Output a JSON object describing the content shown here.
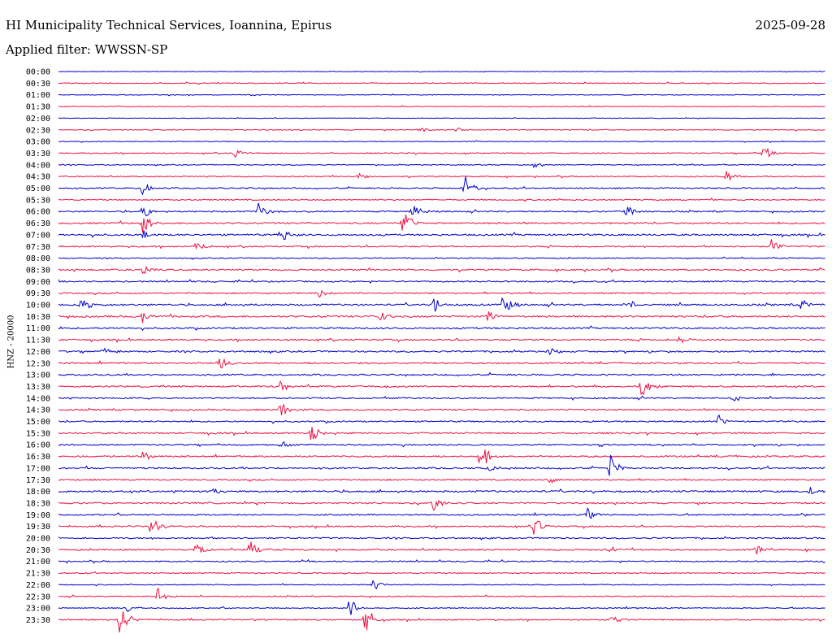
{
  "header": {
    "station": "HI Municipality Technical Services, Ioannina, Epirus",
    "date": "2025-09-28",
    "filter": "Applied filter: WWSSN-SP"
  },
  "channel_label": "HNZ - 20000",
  "colors": {
    "even_trace": "#0000cc",
    "odd_trace": "#ee1144",
    "text": "#000000"
  },
  "chart_data": {
    "type": "line",
    "title": "HI Municipality Technical Services, Ioannina, Epirus",
    "subtitle": "Applied filter: WWSSN-SP",
    "ylabel": "HNZ - 20000",
    "xlabel": "",
    "rows": [
      "00:00",
      "00:30",
      "01:00",
      "01:30",
      "02:00",
      "02:30",
      "03:00",
      "03:30",
      "04:00",
      "04:30",
      "05:00",
      "05:30",
      "06:00",
      "06:30",
      "07:00",
      "07:30",
      "08:00",
      "08:30",
      "09:00",
      "09:30",
      "10:00",
      "10:30",
      "11:00",
      "11:30",
      "12:00",
      "12:30",
      "13:00",
      "13:30",
      "14:00",
      "14:30",
      "15:00",
      "15:30",
      "16:00",
      "16:30",
      "17:00",
      "17:30",
      "18:00",
      "18:30",
      "19:00",
      "19:30",
      "20:00",
      "20:30",
      "21:00",
      "21:30",
      "22:00",
      "22:30",
      "23:00",
      "23:30"
    ],
    "noise_level": [
      0.3,
      0.5,
      0.4,
      0.4,
      0.3,
      0.5,
      0.4,
      0.6,
      0.5,
      0.6,
      0.7,
      0.7,
      0.8,
      0.9,
      1.0,
      0.8,
      0.6,
      0.9,
      0.8,
      0.8,
      1.0,
      1.0,
      0.9,
      0.9,
      0.9,
      0.9,
      0.9,
      0.9,
      0.8,
      0.9,
      0.8,
      0.9,
      0.8,
      0.9,
      0.9,
      0.8,
      1.0,
      0.9,
      0.8,
      0.8,
      0.8,
      0.9,
      0.7,
      0.6,
      0.5,
      0.6,
      0.6,
      0.7
    ],
    "events": [
      {
        "row": 5,
        "t": 0.47,
        "amp": 5
      },
      {
        "row": 5,
        "t": 0.52,
        "amp": 5
      },
      {
        "row": 7,
        "t": 0.23,
        "amp": 6
      },
      {
        "row": 7,
        "t": 0.92,
        "amp": 9
      },
      {
        "row": 8,
        "t": 0.62,
        "amp": 4
      },
      {
        "row": 9,
        "t": 0.39,
        "amp": 5
      },
      {
        "row": 9,
        "t": 0.87,
        "amp": 8
      },
      {
        "row": 10,
        "t": 0.11,
        "amp": 8
      },
      {
        "row": 10,
        "t": 0.53,
        "amp": 16
      },
      {
        "row": 12,
        "t": 0.11,
        "amp": 10
      },
      {
        "row": 12,
        "t": 0.26,
        "amp": 14
      },
      {
        "row": 12,
        "t": 0.46,
        "amp": 14
      },
      {
        "row": 12,
        "t": 0.74,
        "amp": 12
      },
      {
        "row": 13,
        "t": 0.11,
        "amp": 15
      },
      {
        "row": 13,
        "t": 0.45,
        "amp": 22
      },
      {
        "row": 14,
        "t": 0.29,
        "amp": 12
      },
      {
        "row": 14,
        "t": 0.11,
        "amp": 6
      },
      {
        "row": 15,
        "t": 0.18,
        "amp": 9
      },
      {
        "row": 15,
        "t": 0.93,
        "amp": 10
      },
      {
        "row": 17,
        "t": 0.11,
        "amp": 11
      },
      {
        "row": 19,
        "t": 0.34,
        "amp": 6
      },
      {
        "row": 20,
        "t": 0.03,
        "amp": 12
      },
      {
        "row": 20,
        "t": 0.49,
        "amp": 10
      },
      {
        "row": 20,
        "t": 0.58,
        "amp": 14
      },
      {
        "row": 20,
        "t": 0.74,
        "amp": 9
      },
      {
        "row": 20,
        "t": 0.97,
        "amp": 9
      },
      {
        "row": 21,
        "t": 0.11,
        "amp": 8
      },
      {
        "row": 21,
        "t": 0.42,
        "amp": 9
      },
      {
        "row": 21,
        "t": 0.56,
        "amp": 9
      },
      {
        "row": 23,
        "t": 0.81,
        "amp": 6
      },
      {
        "row": 24,
        "t": 0.06,
        "amp": 6
      },
      {
        "row": 24,
        "t": 0.64,
        "amp": 6
      },
      {
        "row": 25,
        "t": 0.21,
        "amp": 9
      },
      {
        "row": 27,
        "t": 0.29,
        "amp": 8
      },
      {
        "row": 27,
        "t": 0.76,
        "amp": 18
      },
      {
        "row": 28,
        "t": 0.88,
        "amp": 6
      },
      {
        "row": 29,
        "t": 0.29,
        "amp": 11
      },
      {
        "row": 30,
        "t": 0.86,
        "amp": 7
      },
      {
        "row": 31,
        "t": 0.33,
        "amp": 11
      },
      {
        "row": 32,
        "t": 0.29,
        "amp": 6
      },
      {
        "row": 33,
        "t": 0.11,
        "amp": 9
      },
      {
        "row": 33,
        "t": 0.55,
        "amp": 22
      },
      {
        "row": 34,
        "t": 0.72,
        "amp": 18
      },
      {
        "row": 34,
        "t": 0.56,
        "amp": 6
      },
      {
        "row": 35,
        "t": 0.64,
        "amp": 6
      },
      {
        "row": 36,
        "t": 0.2,
        "amp": 6
      },
      {
        "row": 36,
        "t": 0.98,
        "amp": 7
      },
      {
        "row": 37,
        "t": 0.49,
        "amp": 12
      },
      {
        "row": 38,
        "t": 0.69,
        "amp": 8
      },
      {
        "row": 39,
        "t": 0.12,
        "amp": 14
      },
      {
        "row": 39,
        "t": 0.62,
        "amp": 14
      },
      {
        "row": 41,
        "t": 0.18,
        "amp": 12
      },
      {
        "row": 41,
        "t": 0.25,
        "amp": 12
      },
      {
        "row": 41,
        "t": 0.72,
        "amp": 6
      },
      {
        "row": 41,
        "t": 0.91,
        "amp": 7
      },
      {
        "row": 44,
        "t": 0.41,
        "amp": 9
      },
      {
        "row": 45,
        "t": 0.13,
        "amp": 11
      },
      {
        "row": 46,
        "t": 0.38,
        "amp": 16
      },
      {
        "row": 46,
        "t": 0.09,
        "amp": 5
      },
      {
        "row": 47,
        "t": 0.08,
        "amp": 18
      },
      {
        "row": 47,
        "t": 0.4,
        "amp": 22
      },
      {
        "row": 47,
        "t": 0.72,
        "amp": 10
      }
    ]
  }
}
